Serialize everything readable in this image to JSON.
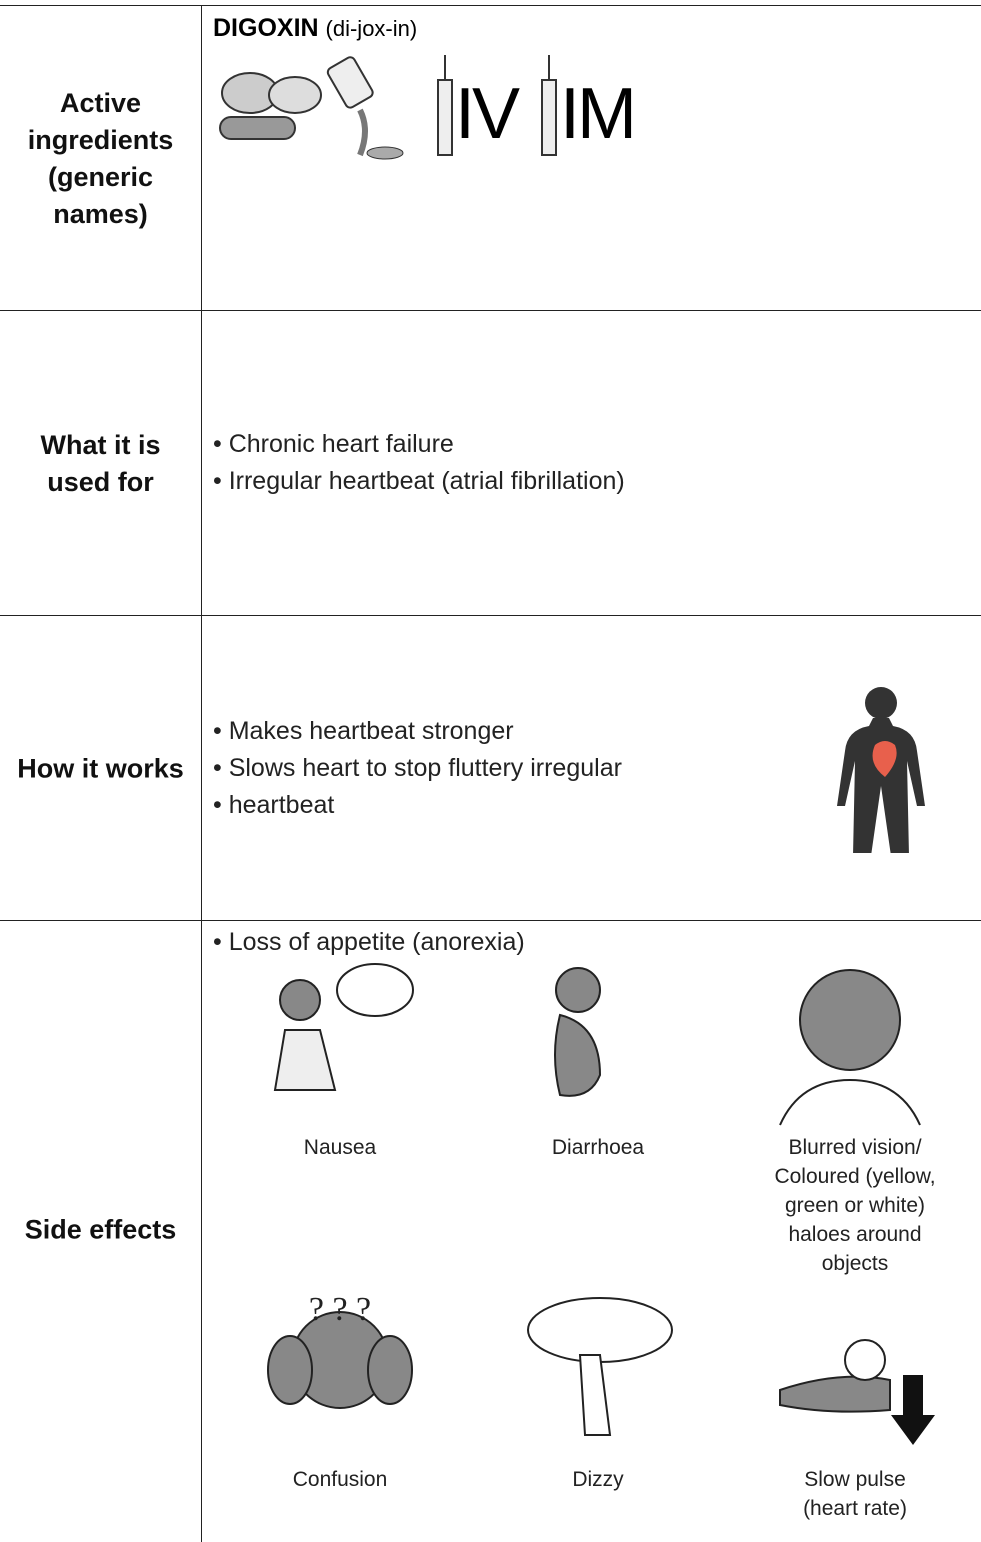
{
  "table": {
    "rows": [
      {
        "label": "Active ingredients (generic names)",
        "drug": "DIGOXIN",
        "pronunciation": "(di-jox-in)",
        "routes": [
          "IV",
          "IM"
        ]
      },
      {
        "label": "What it is used for",
        "bullets": [
          "Chronic heart failure",
          "Irregular heartbeat (atrial fibrillation)"
        ]
      },
      {
        "label": "How it works",
        "bullets": [
          "Makes heartbeat stronger",
          "Slows heart to stop fluttery irregular",
          "heartbeat"
        ]
      },
      {
        "label": "Side effects",
        "bullets": [
          "Loss of appetite (anorexia)"
        ],
        "effects": [
          "Nausea",
          "Diarrhoea",
          "Blurred vision/ Coloured (yellow, green or white) haloes around objects",
          "Confusion",
          "Dizzy",
          "Slow pulse (heart rate)"
        ]
      }
    ]
  }
}
